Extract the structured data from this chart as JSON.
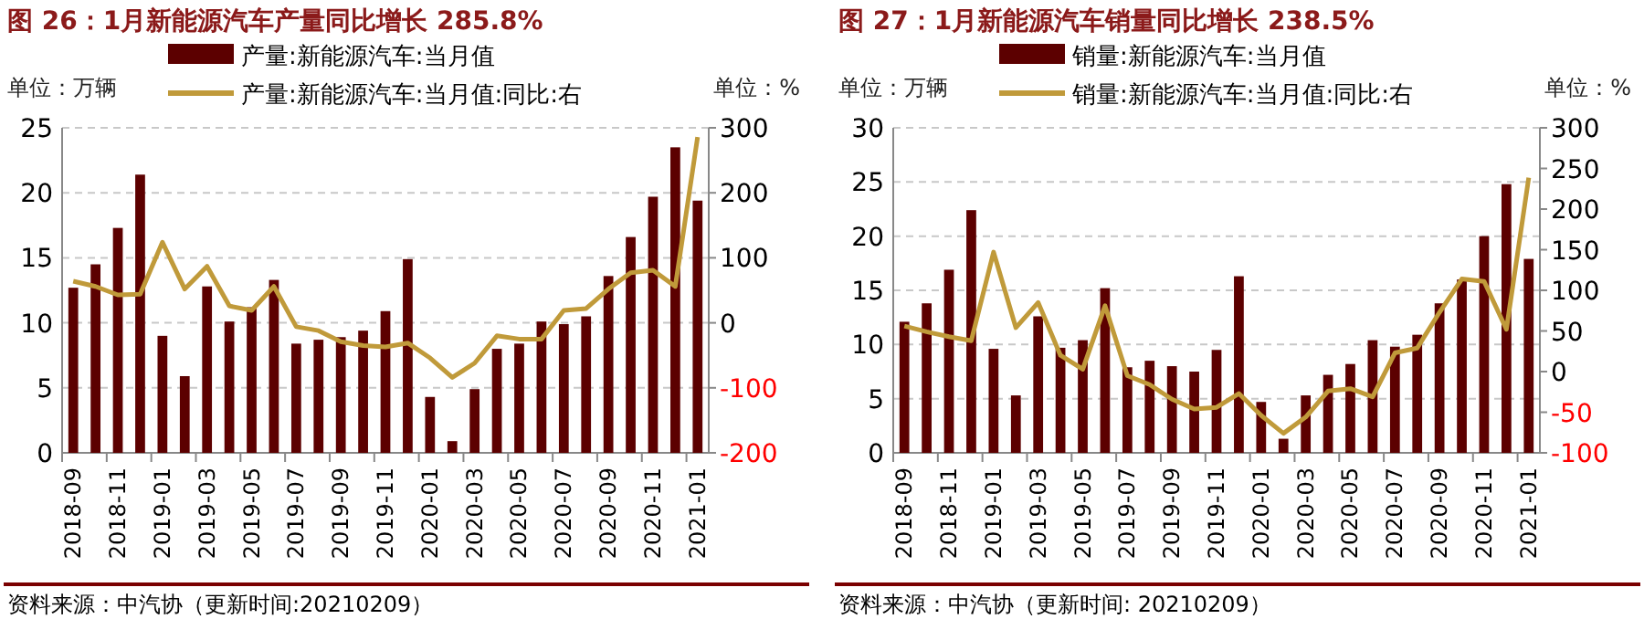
{
  "chart_data": [
    {
      "type": "bar",
      "title": "图 26：1月新能源汽车产量同比增长 285.8%",
      "ylabel": "单位：万辆",
      "y2label": "单位：%",
      "legend": "top",
      "grid": "y",
      "categories": [
        "2018-09",
        null,
        "2018-11",
        null,
        "2019-01",
        null,
        "2019-03",
        null,
        "2019-05",
        null,
        "2019-07",
        null,
        "2019-09",
        null,
        "2019-11",
        null,
        "2020-01",
        null,
        "2020-03",
        null,
        "2020-05",
        null,
        "2020-07",
        null,
        "2020-09",
        null,
        "2020-11",
        null,
        "2021-01"
      ],
      "series": [
        {
          "name": "产量:新能源汽车:当月值",
          "color": "#5c0000",
          "values": [
            12.7,
            14.5,
            17.3,
            21.4,
            9.0,
            5.9,
            12.8,
            10.1,
            11.2,
            13.3,
            8.4,
            8.7,
            8.9,
            9.4,
            10.9,
            14.9,
            4.3,
            0.9,
            4.9,
            8.0,
            8.4,
            10.1,
            9.9,
            10.5,
            13.6,
            16.6,
            19.7,
            23.5,
            19.4
          ]
        },
        {
          "name": "产量:新能源汽车:当月值:同比:右",
          "type": "line",
          "axis": "y2",
          "color": "#c09a3a",
          "values": [
            64,
            56,
            43,
            44,
            124,
            52,
            87,
            26,
            19,
            56,
            -6,
            -12,
            -29,
            -35,
            -37,
            -31,
            -54,
            -84,
            -62,
            -20,
            -25,
            -25,
            19,
            22,
            52,
            77,
            81,
            56,
            285.8
          ]
        }
      ],
      "ylim": [
        0,
        25
      ],
      "yticks": [
        0,
        5,
        10,
        15,
        20,
        25
      ],
      "y2lim": [
        -200,
        300
      ],
      "y2ticks": [
        -200,
        -100,
        0,
        100,
        200,
        300
      ],
      "annotations": [
        "资料来源：中汽协（更新时间:20210209）"
      ]
    },
    {
      "type": "bar",
      "title": "图 27：1月新能源汽车销量同比增长 238.5%",
      "ylabel": "单位：万辆",
      "y2label": "单位：%",
      "legend": "top",
      "grid": "y",
      "categories": [
        "2018-09",
        null,
        "2018-11",
        null,
        "2019-01",
        null,
        "2019-03",
        null,
        "2019-05",
        null,
        "2019-07",
        null,
        "2019-09",
        null,
        "2019-11",
        null,
        "2020-01",
        null,
        "2020-03",
        null,
        "2020-05",
        null,
        "2020-07",
        null,
        "2020-09",
        null,
        "2020-11",
        null,
        "2021-01"
      ],
      "series": [
        {
          "name": "销量:新能源汽车:当月值",
          "color": "#5c0000",
          "values": [
            12.1,
            13.8,
            16.9,
            22.4,
            9.6,
            5.3,
            12.6,
            9.7,
            10.4,
            15.2,
            7.9,
            8.5,
            8.0,
            7.5,
            9.5,
            16.3,
            4.7,
            1.3,
            5.3,
            7.2,
            8.2,
            10.4,
            9.8,
            10.9,
            13.8,
            16.0,
            20.0,
            24.8,
            17.9
          ]
        },
        {
          "name": "销量:新能源汽车:当月值:同比:右",
          "type": "line",
          "axis": "y2",
          "color": "#c09a3a",
          "values": [
            56,
            49,
            43,
            38,
            147,
            54,
            85,
            20,
            3,
            81,
            -5,
            -16,
            -34,
            -46,
            -44,
            -27,
            -54,
            -76,
            -56,
            -24,
            -21,
            -31,
            23,
            29,
            73,
            114,
            111,
            52,
            238.5
          ]
        }
      ],
      "ylim": [
        0,
        30
      ],
      "yticks": [
        0,
        5,
        10,
        15,
        20,
        25,
        30
      ],
      "y2lim": [
        -100,
        300
      ],
      "y2ticks": [
        -100,
        -50,
        0,
        50,
        100,
        150,
        200,
        250,
        300
      ],
      "annotations": [
        "资料来源：中汽协（更新时间: 20210209）"
      ]
    }
  ]
}
